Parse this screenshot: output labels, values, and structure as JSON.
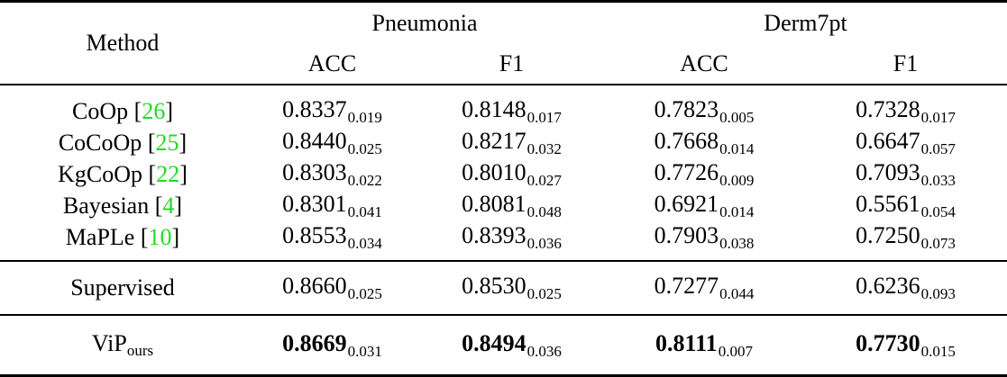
{
  "table": {
    "header": {
      "method_label": "Method",
      "groups": [
        {
          "label": "Pneumonia",
          "metrics": [
            "ACC",
            "F1"
          ]
        },
        {
          "label": "Derm7pt",
          "metrics": [
            "ACC",
            "F1"
          ]
        }
      ]
    },
    "citation_brackets": {
      "open": "[",
      "close": "]"
    },
    "colors": {
      "citation_green": "#21DC21",
      "text_black": "#000000",
      "background": "#FFFFFF"
    },
    "rows": [
      {
        "section": "baselines",
        "method": "CoOp",
        "citation": "26",
        "bold": false,
        "values": [
          {
            "main": "0.8337",
            "sub": "0.019"
          },
          {
            "main": "0.8148",
            "sub": "0.017"
          },
          {
            "main": "0.7823",
            "sub": "0.005"
          },
          {
            "main": "0.7328",
            "sub": "0.017"
          }
        ]
      },
      {
        "section": "baselines",
        "method": "CoCoOp",
        "citation": "25",
        "bold": false,
        "values": [
          {
            "main": "0.8440",
            "sub": "0.025"
          },
          {
            "main": "0.8217",
            "sub": "0.032"
          },
          {
            "main": "0.7668",
            "sub": "0.014"
          },
          {
            "main": "0.6647",
            "sub": "0.057"
          }
        ]
      },
      {
        "section": "baselines",
        "method": "KgCoOp",
        "citation": "22",
        "bold": false,
        "values": [
          {
            "main": "0.8303",
            "sub": "0.022"
          },
          {
            "main": "0.8010",
            "sub": "0.027"
          },
          {
            "main": "0.7726",
            "sub": "0.009"
          },
          {
            "main": "0.7093",
            "sub": "0.033"
          }
        ]
      },
      {
        "section": "baselines",
        "method": "Bayesian",
        "citation": "4",
        "bold": false,
        "values": [
          {
            "main": "0.8301",
            "sub": "0.041"
          },
          {
            "main": "0.8081",
            "sub": "0.048"
          },
          {
            "main": "0.6921",
            "sub": "0.014"
          },
          {
            "main": "0.5561",
            "sub": "0.054"
          }
        ]
      },
      {
        "section": "baselines",
        "method": "MaPLe",
        "citation": "10",
        "bold": false,
        "values": [
          {
            "main": "0.8553",
            "sub": "0.034"
          },
          {
            "main": "0.8393",
            "sub": "0.036"
          },
          {
            "main": "0.7903",
            "sub": "0.038"
          },
          {
            "main": "0.7250",
            "sub": "0.073"
          }
        ]
      },
      {
        "section": "supervised",
        "method": "Supervised",
        "citation": null,
        "bold": false,
        "values": [
          {
            "main": "0.8660",
            "sub": "0.025"
          },
          {
            "main": "0.8530",
            "sub": "0.025"
          },
          {
            "main": "0.7277",
            "sub": "0.044"
          },
          {
            "main": "0.6236",
            "sub": "0.093"
          }
        ]
      },
      {
        "section": "ours",
        "method": "ViP",
        "method_subscript": "ours",
        "citation": null,
        "bold": true,
        "values": [
          {
            "main": "0.8669",
            "sub": "0.031"
          },
          {
            "main": "0.8494",
            "sub": "0.036"
          },
          {
            "main": "0.8111",
            "sub": "0.007"
          },
          {
            "main": "0.7730",
            "sub": "0.015"
          }
        ]
      }
    ]
  }
}
